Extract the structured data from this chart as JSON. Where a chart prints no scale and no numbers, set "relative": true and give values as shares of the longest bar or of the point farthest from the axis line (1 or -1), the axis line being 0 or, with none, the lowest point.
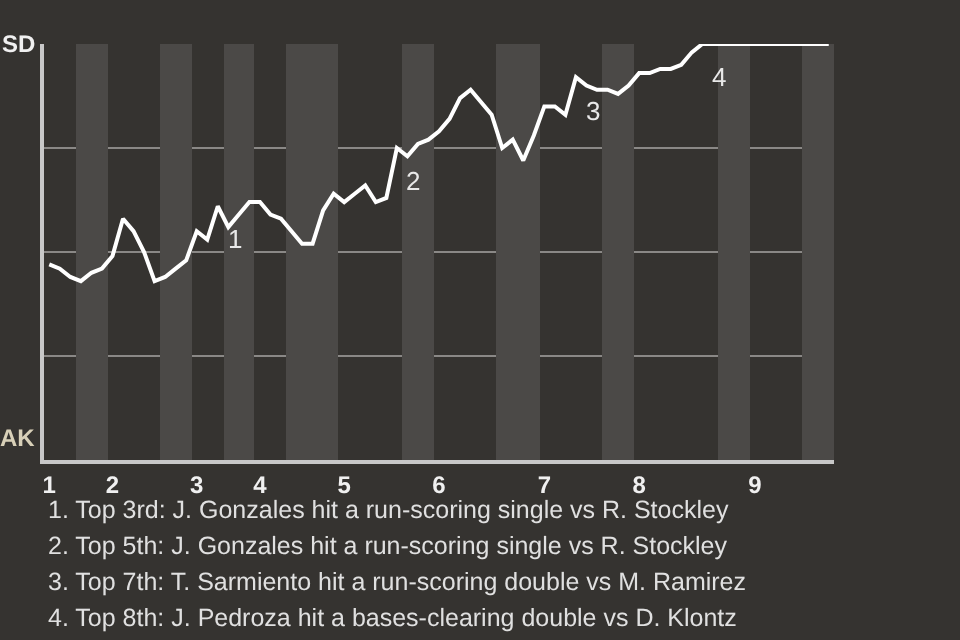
{
  "chart_data": {
    "type": "line",
    "relative": true,
    "categories": [
      "1",
      null,
      null,
      null,
      null,
      null,
      "2",
      null,
      null,
      null,
      null,
      null,
      null,
      null,
      "3",
      null,
      null,
      null,
      null,
      null,
      "4",
      null,
      null,
      null,
      null,
      null,
      null,
      null,
      "5",
      null,
      null,
      null,
      null,
      null,
      null,
      null,
      null,
      "6",
      null,
      null,
      null,
      null,
      null,
      null,
      null,
      null,
      null,
      "7",
      null,
      null,
      null,
      null,
      null,
      null,
      null,
      null,
      "8",
      null,
      null,
      null,
      null,
      null,
      null,
      null,
      null,
      null,
      null,
      "9",
      null,
      null,
      null,
      null,
      null,
      null,
      null
    ],
    "series": [
      {
        "type": "bar",
        "color": "#4b4947",
        "values": [
          null,
          null,
          null,
          1,
          1,
          1,
          null,
          null,
          null,
          null,
          null,
          1,
          1,
          1,
          null,
          null,
          null,
          1,
          1,
          1,
          null,
          null,
          null,
          1,
          1,
          1,
          1,
          1,
          null,
          null,
          null,
          null,
          null,
          null,
          1,
          1,
          1,
          null,
          null,
          null,
          null,
          null,
          null,
          1,
          1,
          1,
          1,
          null,
          null,
          null,
          null,
          null,
          null,
          1,
          1,
          1,
          null,
          null,
          null,
          null,
          null,
          null,
          null,
          null,
          1,
          1,
          1,
          null,
          null,
          null,
          null,
          null,
          1,
          1,
          1
        ]
      },
      {
        "color": "#ffffff",
        "values": [
          0.47,
          0.46,
          0.44,
          0.43,
          0.45,
          0.46,
          0.49,
          0.58,
          0.55,
          0.5,
          0.43,
          0.44,
          0.46,
          0.48,
          0.55,
          0.53,
          0.61,
          0.56,
          0.59,
          0.62,
          0.62,
          0.59,
          0.58,
          0.55,
          0.52,
          0.52,
          0.6,
          0.64,
          0.62,
          0.64,
          0.66,
          0.62,
          0.63,
          0.75,
          0.73,
          0.76,
          0.77,
          0.79,
          0.82,
          0.87,
          0.89,
          0.86,
          0.83,
          0.75,
          0.77,
          0.72,
          0.78,
          0.85,
          0.85,
          0.83,
          0.92,
          0.9,
          0.89,
          0.89,
          0.88,
          0.9,
          0.93,
          0.93,
          0.94,
          0.94,
          0.95,
          0.98,
          1.0,
          1.0,
          1.0,
          1.0,
          1.0,
          1.0,
          1.0,
          1.0,
          1.0,
          1.0,
          1.0,
          1.0,
          1.0
        ]
      }
    ],
    "grid": "y",
    "marker": "none",
    "annotations": [
      "SD",
      "AK",
      {
        "text": "1",
        "y": 0.61
      },
      {
        "text": "2",
        "y": 0.75
      },
      {
        "text": "3",
        "y": 0.92
      },
      {
        "text": "4",
        "y": 1.0
      },
      "1. Top 3rd: J. Gonzales hit a run-scoring single vs R. Stockley",
      "2. Top 5th: J. Gonzales hit a run-scoring single vs R. Stockley",
      "3. Top 7th: T. Sarmiento hit a run-scoring double vs M. Ramirez",
      "4. Top 8th: J. Pedroza hit a bases-clearing double vs D. Klontz"
    ]
  }
}
